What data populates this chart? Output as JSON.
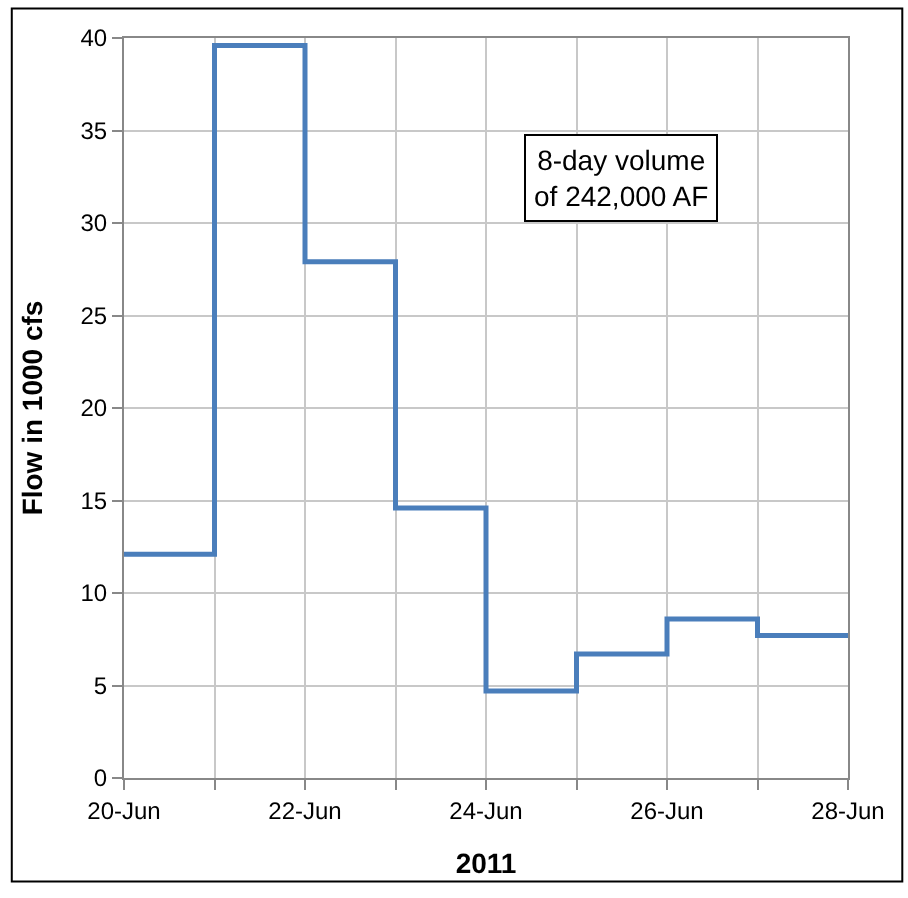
{
  "chart_data": {
    "type": "step",
    "xlabel": "2011",
    "ylabel": "Flow in 1000 cfs",
    "x": [
      "2011-06-20",
      "2011-06-21",
      "2011-06-22",
      "2011-06-23",
      "2011-06-24",
      "2011-06-25",
      "2011-06-26",
      "2011-06-27",
      "2011-06-28"
    ],
    "series": [
      {
        "color": "#4a7ebb",
        "values": [
          12.1,
          39.6,
          27.9,
          14.6,
          4.7,
          6.7,
          8.6,
          7.7,
          7.7
        ]
      }
    ],
    "xlim": [
      "2011-06-20",
      "2011-06-28"
    ],
    "xticks": [
      {
        "value": "2011-06-20",
        "label": "20-Jun"
      },
      {
        "value": "2011-06-21",
        "label": null
      },
      {
        "value": "2011-06-22",
        "label": "22-Jun"
      },
      {
        "value": "2011-06-23",
        "label": null
      },
      {
        "value": "2011-06-24",
        "label": "24-Jun"
      },
      {
        "value": "2011-06-25",
        "label": null
      },
      {
        "value": "2011-06-26",
        "label": "26-Jun"
      },
      {
        "value": "2011-06-27",
        "label": null
      },
      {
        "value": "2011-06-28",
        "label": "28-Jun"
      }
    ],
    "ylim": [
      0,
      40
    ],
    "yticks": [
      0,
      5,
      10,
      15,
      20,
      25,
      30,
      35,
      40
    ],
    "grid": true,
    "legend": false,
    "marker": "none",
    "line_style": "solid",
    "annotations": [
      "8-day volume\nof 242,000 AF"
    ]
  }
}
